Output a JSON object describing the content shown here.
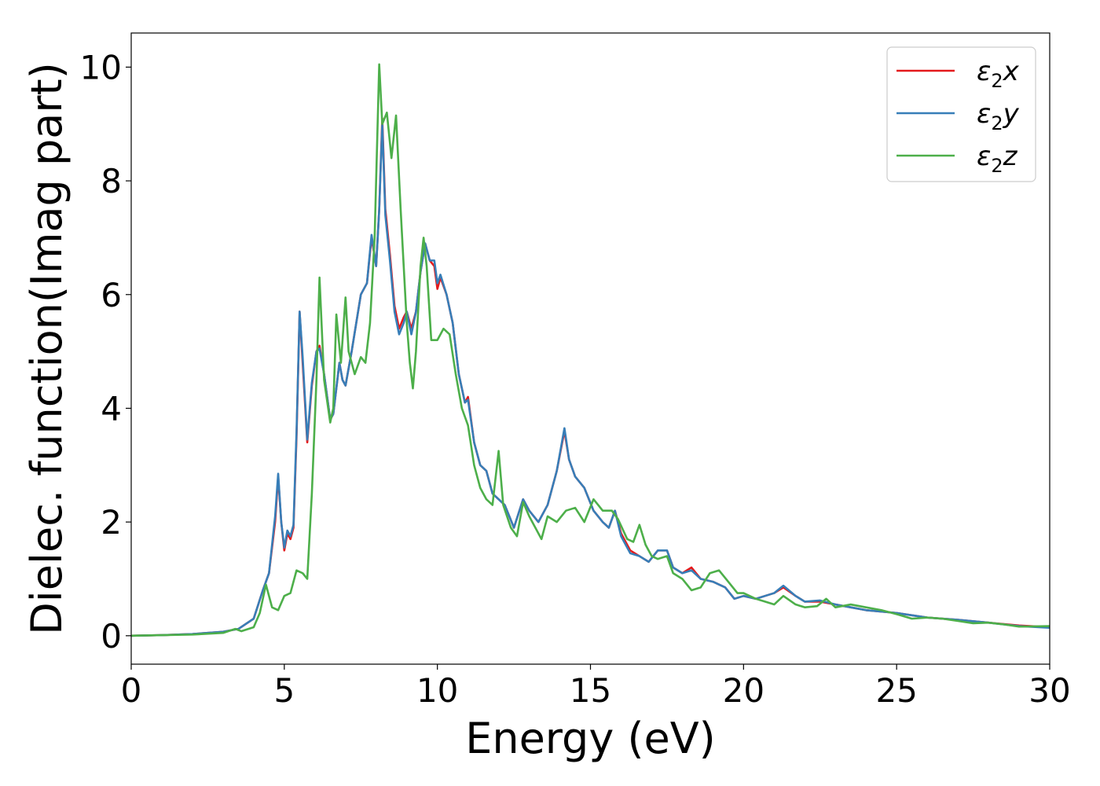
{
  "chart_data": {
    "type": "line",
    "title": "",
    "xlabel": "Energy (eV)",
    "ylabel": "Dielec. function(Imag part)",
    "xlim": [
      0,
      30
    ],
    "ylim": [
      -0.5,
      10.6
    ],
    "xticks": [
      0,
      5,
      10,
      15,
      20,
      25,
      30
    ],
    "yticks": [
      0,
      2,
      4,
      6,
      8,
      10
    ],
    "grid": false,
    "legend_position": "top-right",
    "series": [
      {
        "name": "ε2x",
        "legend_base": "ε",
        "legend_sub": "2",
        "legend_tail": "x",
        "color": "#e41a1c",
        "points": [
          [
            0,
            0
          ],
          [
            1,
            0.01
          ],
          [
            2,
            0.03
          ],
          [
            3,
            0.07
          ],
          [
            3.5,
            0.12
          ],
          [
            4,
            0.3
          ],
          [
            4.3,
            0.8
          ],
          [
            4.5,
            1.1
          ],
          [
            4.7,
            2.0
          ],
          [
            4.8,
            2.8
          ],
          [
            4.9,
            2.0
          ],
          [
            5.0,
            1.5
          ],
          [
            5.1,
            1.8
          ],
          [
            5.2,
            1.7
          ],
          [
            5.3,
            1.9
          ],
          [
            5.4,
            3.5
          ],
          [
            5.5,
            5.7
          ],
          [
            5.6,
            4.8
          ],
          [
            5.75,
            3.4
          ],
          [
            5.9,
            4.4
          ],
          [
            6.05,
            5.0
          ],
          [
            6.15,
            5.1
          ],
          [
            6.3,
            4.6
          ],
          [
            6.5,
            3.8
          ],
          [
            6.6,
            3.9
          ],
          [
            6.8,
            4.8
          ],
          [
            6.9,
            4.5
          ],
          [
            7.0,
            4.4
          ],
          [
            7.2,
            5.0
          ],
          [
            7.5,
            6.0
          ],
          [
            7.7,
            6.2
          ],
          [
            7.85,
            7.0
          ],
          [
            8.0,
            6.5
          ],
          [
            8.1,
            7.5
          ],
          [
            8.2,
            9.1
          ],
          [
            8.3,
            7.5
          ],
          [
            8.45,
            6.7
          ],
          [
            8.6,
            5.8
          ],
          [
            8.75,
            5.4
          ],
          [
            8.9,
            5.6
          ],
          [
            9.0,
            5.7
          ],
          [
            9.15,
            5.4
          ],
          [
            9.3,
            5.7
          ],
          [
            9.45,
            6.4
          ],
          [
            9.6,
            6.9
          ],
          [
            9.75,
            6.6
          ],
          [
            9.9,
            6.5
          ],
          [
            10.0,
            6.1
          ],
          [
            10.1,
            6.3
          ],
          [
            10.3,
            6.0
          ],
          [
            10.5,
            5.5
          ],
          [
            10.7,
            4.6
          ],
          [
            10.9,
            4.1
          ],
          [
            11.0,
            4.2
          ],
          [
            11.2,
            3.4
          ],
          [
            11.4,
            3.0
          ],
          [
            11.6,
            2.9
          ],
          [
            11.8,
            2.5
          ],
          [
            12.0,
            2.4
          ],
          [
            12.2,
            2.3
          ],
          [
            12.5,
            1.9
          ],
          [
            12.8,
            2.4
          ],
          [
            13.0,
            2.2
          ],
          [
            13.3,
            2.0
          ],
          [
            13.6,
            2.3
          ],
          [
            13.9,
            2.9
          ],
          [
            14.15,
            3.6
          ],
          [
            14.3,
            3.1
          ],
          [
            14.5,
            2.8
          ],
          [
            14.8,
            2.6
          ],
          [
            15.1,
            2.2
          ],
          [
            15.4,
            2.0
          ],
          [
            15.6,
            1.9
          ],
          [
            15.8,
            2.2
          ],
          [
            16.0,
            1.8
          ],
          [
            16.3,
            1.5
          ],
          [
            16.6,
            1.4
          ],
          [
            16.9,
            1.3
          ],
          [
            17.2,
            1.5
          ],
          [
            17.5,
            1.5
          ],
          [
            17.7,
            1.2
          ],
          [
            18.0,
            1.1
          ],
          [
            18.3,
            1.2
          ],
          [
            18.6,
            1.0
          ],
          [
            19.0,
            0.95
          ],
          [
            19.4,
            0.85
          ],
          [
            19.7,
            0.65
          ],
          [
            20.0,
            0.7
          ],
          [
            20.4,
            0.65
          ],
          [
            20.7,
            0.7
          ],
          [
            21.0,
            0.75
          ],
          [
            21.3,
            0.85
          ],
          [
            21.7,
            0.7
          ],
          [
            22.0,
            0.6
          ],
          [
            22.5,
            0.6
          ],
          [
            23.0,
            0.55
          ],
          [
            23.5,
            0.5
          ],
          [
            24.0,
            0.45
          ],
          [
            25.0,
            0.4
          ],
          [
            26.0,
            0.32
          ],
          [
            27.0,
            0.28
          ],
          [
            28.0,
            0.23
          ],
          [
            29.0,
            0.18
          ],
          [
            30.0,
            0.15
          ]
        ]
      },
      {
        "name": "ε2y",
        "legend_base": "ε",
        "legend_sub": "2",
        "legend_tail": "y",
        "color": "#377eb8",
        "points": [
          [
            0,
            0
          ],
          [
            1,
            0.01
          ],
          [
            2,
            0.03
          ],
          [
            3,
            0.07
          ],
          [
            3.5,
            0.12
          ],
          [
            4,
            0.3
          ],
          [
            4.3,
            0.8
          ],
          [
            4.5,
            1.1
          ],
          [
            4.7,
            2.1
          ],
          [
            4.8,
            2.85
          ],
          [
            4.9,
            2.0
          ],
          [
            5.0,
            1.55
          ],
          [
            5.1,
            1.85
          ],
          [
            5.2,
            1.75
          ],
          [
            5.3,
            1.95
          ],
          [
            5.4,
            3.6
          ],
          [
            5.5,
            5.7
          ],
          [
            5.6,
            4.9
          ],
          [
            5.75,
            3.45
          ],
          [
            5.9,
            4.45
          ],
          [
            6.05,
            5.0
          ],
          [
            6.15,
            5.05
          ],
          [
            6.3,
            4.6
          ],
          [
            6.5,
            3.8
          ],
          [
            6.6,
            3.9
          ],
          [
            6.8,
            4.8
          ],
          [
            6.9,
            4.5
          ],
          [
            7.0,
            4.4
          ],
          [
            7.2,
            5.0
          ],
          [
            7.5,
            6.0
          ],
          [
            7.7,
            6.2
          ],
          [
            7.85,
            7.05
          ],
          [
            8.0,
            6.5
          ],
          [
            8.1,
            7.5
          ],
          [
            8.2,
            9.0
          ],
          [
            8.3,
            7.4
          ],
          [
            8.45,
            6.6
          ],
          [
            8.6,
            5.7
          ],
          [
            8.75,
            5.3
          ],
          [
            8.9,
            5.5
          ],
          [
            9.0,
            5.7
          ],
          [
            9.15,
            5.3
          ],
          [
            9.3,
            5.7
          ],
          [
            9.45,
            6.4
          ],
          [
            9.6,
            6.9
          ],
          [
            9.75,
            6.6
          ],
          [
            9.9,
            6.6
          ],
          [
            10.0,
            6.2
          ],
          [
            10.1,
            6.35
          ],
          [
            10.3,
            6.0
          ],
          [
            10.5,
            5.5
          ],
          [
            10.7,
            4.6
          ],
          [
            10.9,
            4.1
          ],
          [
            11.0,
            4.15
          ],
          [
            11.2,
            3.4
          ],
          [
            11.4,
            3.0
          ],
          [
            11.6,
            2.9
          ],
          [
            11.8,
            2.5
          ],
          [
            12.0,
            2.4
          ],
          [
            12.2,
            2.3
          ],
          [
            12.5,
            1.9
          ],
          [
            12.8,
            2.4
          ],
          [
            13.0,
            2.2
          ],
          [
            13.3,
            2.0
          ],
          [
            13.6,
            2.3
          ],
          [
            13.9,
            2.9
          ],
          [
            14.15,
            3.65
          ],
          [
            14.3,
            3.1
          ],
          [
            14.5,
            2.8
          ],
          [
            14.8,
            2.6
          ],
          [
            15.1,
            2.2
          ],
          [
            15.4,
            2.0
          ],
          [
            15.6,
            1.9
          ],
          [
            15.8,
            2.2
          ],
          [
            16.0,
            1.75
          ],
          [
            16.3,
            1.45
          ],
          [
            16.6,
            1.4
          ],
          [
            16.9,
            1.3
          ],
          [
            17.2,
            1.5
          ],
          [
            17.5,
            1.5
          ],
          [
            17.7,
            1.2
          ],
          [
            18.0,
            1.1
          ],
          [
            18.3,
            1.15
          ],
          [
            18.6,
            1.0
          ],
          [
            19.0,
            0.95
          ],
          [
            19.4,
            0.85
          ],
          [
            19.7,
            0.65
          ],
          [
            20.0,
            0.7
          ],
          [
            20.4,
            0.65
          ],
          [
            20.7,
            0.7
          ],
          [
            21.0,
            0.75
          ],
          [
            21.3,
            0.88
          ],
          [
            21.7,
            0.7
          ],
          [
            22.0,
            0.6
          ],
          [
            22.5,
            0.62
          ],
          [
            23.0,
            0.55
          ],
          [
            23.5,
            0.5
          ],
          [
            24.0,
            0.45
          ],
          [
            25.0,
            0.4
          ],
          [
            26.0,
            0.32
          ],
          [
            27.0,
            0.28
          ],
          [
            28.0,
            0.23
          ],
          [
            29.0,
            0.17
          ],
          [
            30.0,
            0.14
          ]
        ]
      },
      {
        "name": "ε2z",
        "legend_base": "ε",
        "legend_sub": "2",
        "legend_tail": "z",
        "color": "#4daf4a",
        "points": [
          [
            0,
            0
          ],
          [
            1,
            0.01
          ],
          [
            2,
            0.02
          ],
          [
            3,
            0.05
          ],
          [
            3.4,
            0.12
          ],
          [
            3.6,
            0.08
          ],
          [
            4.0,
            0.15
          ],
          [
            4.2,
            0.4
          ],
          [
            4.4,
            0.9
          ],
          [
            4.6,
            0.5
          ],
          [
            4.8,
            0.45
          ],
          [
            5.0,
            0.7
          ],
          [
            5.2,
            0.75
          ],
          [
            5.4,
            1.15
          ],
          [
            5.6,
            1.1
          ],
          [
            5.75,
            1.0
          ],
          [
            5.9,
            2.5
          ],
          [
            6.05,
            4.5
          ],
          [
            6.15,
            6.3
          ],
          [
            6.3,
            4.5
          ],
          [
            6.5,
            3.75
          ],
          [
            6.6,
            4.0
          ],
          [
            6.7,
            5.65
          ],
          [
            6.85,
            4.8
          ],
          [
            7.0,
            5.95
          ],
          [
            7.1,
            5.0
          ],
          [
            7.3,
            4.6
          ],
          [
            7.5,
            4.9
          ],
          [
            7.65,
            4.8
          ],
          [
            7.8,
            5.5
          ],
          [
            7.95,
            7.0
          ],
          [
            8.1,
            10.05
          ],
          [
            8.2,
            9.0
          ],
          [
            8.35,
            9.2
          ],
          [
            8.5,
            8.4
          ],
          [
            8.65,
            9.15
          ],
          [
            8.8,
            7.5
          ],
          [
            8.9,
            6.5
          ],
          [
            9.0,
            5.5
          ],
          [
            9.1,
            4.8
          ],
          [
            9.2,
            4.35
          ],
          [
            9.3,
            5.0
          ],
          [
            9.45,
            6.5
          ],
          [
            9.55,
            7.0
          ],
          [
            9.65,
            6.5
          ],
          [
            9.8,
            5.2
          ],
          [
            10.0,
            5.2
          ],
          [
            10.2,
            5.4
          ],
          [
            10.4,
            5.3
          ],
          [
            10.6,
            4.6
          ],
          [
            10.8,
            4.0
          ],
          [
            11.0,
            3.7
          ],
          [
            11.2,
            3.0
          ],
          [
            11.4,
            2.6
          ],
          [
            11.6,
            2.4
          ],
          [
            11.8,
            2.3
          ],
          [
            12.0,
            3.25
          ],
          [
            12.15,
            2.3
          ],
          [
            12.4,
            1.9
          ],
          [
            12.6,
            1.75
          ],
          [
            12.8,
            2.35
          ],
          [
            13.0,
            2.1
          ],
          [
            13.2,
            1.9
          ],
          [
            13.4,
            1.7
          ],
          [
            13.6,
            2.1
          ],
          [
            13.9,
            2.0
          ],
          [
            14.2,
            2.2
          ],
          [
            14.5,
            2.25
          ],
          [
            14.8,
            2.0
          ],
          [
            15.1,
            2.4
          ],
          [
            15.4,
            2.2
          ],
          [
            15.7,
            2.2
          ],
          [
            15.9,
            2.05
          ],
          [
            16.2,
            1.7
          ],
          [
            16.4,
            1.65
          ],
          [
            16.6,
            1.95
          ],
          [
            16.8,
            1.6
          ],
          [
            17.0,
            1.4
          ],
          [
            17.2,
            1.35
          ],
          [
            17.5,
            1.4
          ],
          [
            17.7,
            1.1
          ],
          [
            18.0,
            1.0
          ],
          [
            18.3,
            0.8
          ],
          [
            18.6,
            0.85
          ],
          [
            18.9,
            1.1
          ],
          [
            19.2,
            1.15
          ],
          [
            19.5,
            0.95
          ],
          [
            19.8,
            0.75
          ],
          [
            20.0,
            0.75
          ],
          [
            20.4,
            0.65
          ],
          [
            20.7,
            0.6
          ],
          [
            21.0,
            0.55
          ],
          [
            21.3,
            0.7
          ],
          [
            21.7,
            0.55
          ],
          [
            22.0,
            0.5
          ],
          [
            22.4,
            0.52
          ],
          [
            22.7,
            0.65
          ],
          [
            23.0,
            0.5
          ],
          [
            23.5,
            0.55
          ],
          [
            24.0,
            0.5
          ],
          [
            24.5,
            0.45
          ],
          [
            25.0,
            0.38
          ],
          [
            25.5,
            0.3
          ],
          [
            26.0,
            0.32
          ],
          [
            26.5,
            0.3
          ],
          [
            27.0,
            0.26
          ],
          [
            27.5,
            0.22
          ],
          [
            28.0,
            0.23
          ],
          [
            28.5,
            0.2
          ],
          [
            29.0,
            0.16
          ],
          [
            30.0,
            0.17
          ]
        ]
      }
    ]
  }
}
